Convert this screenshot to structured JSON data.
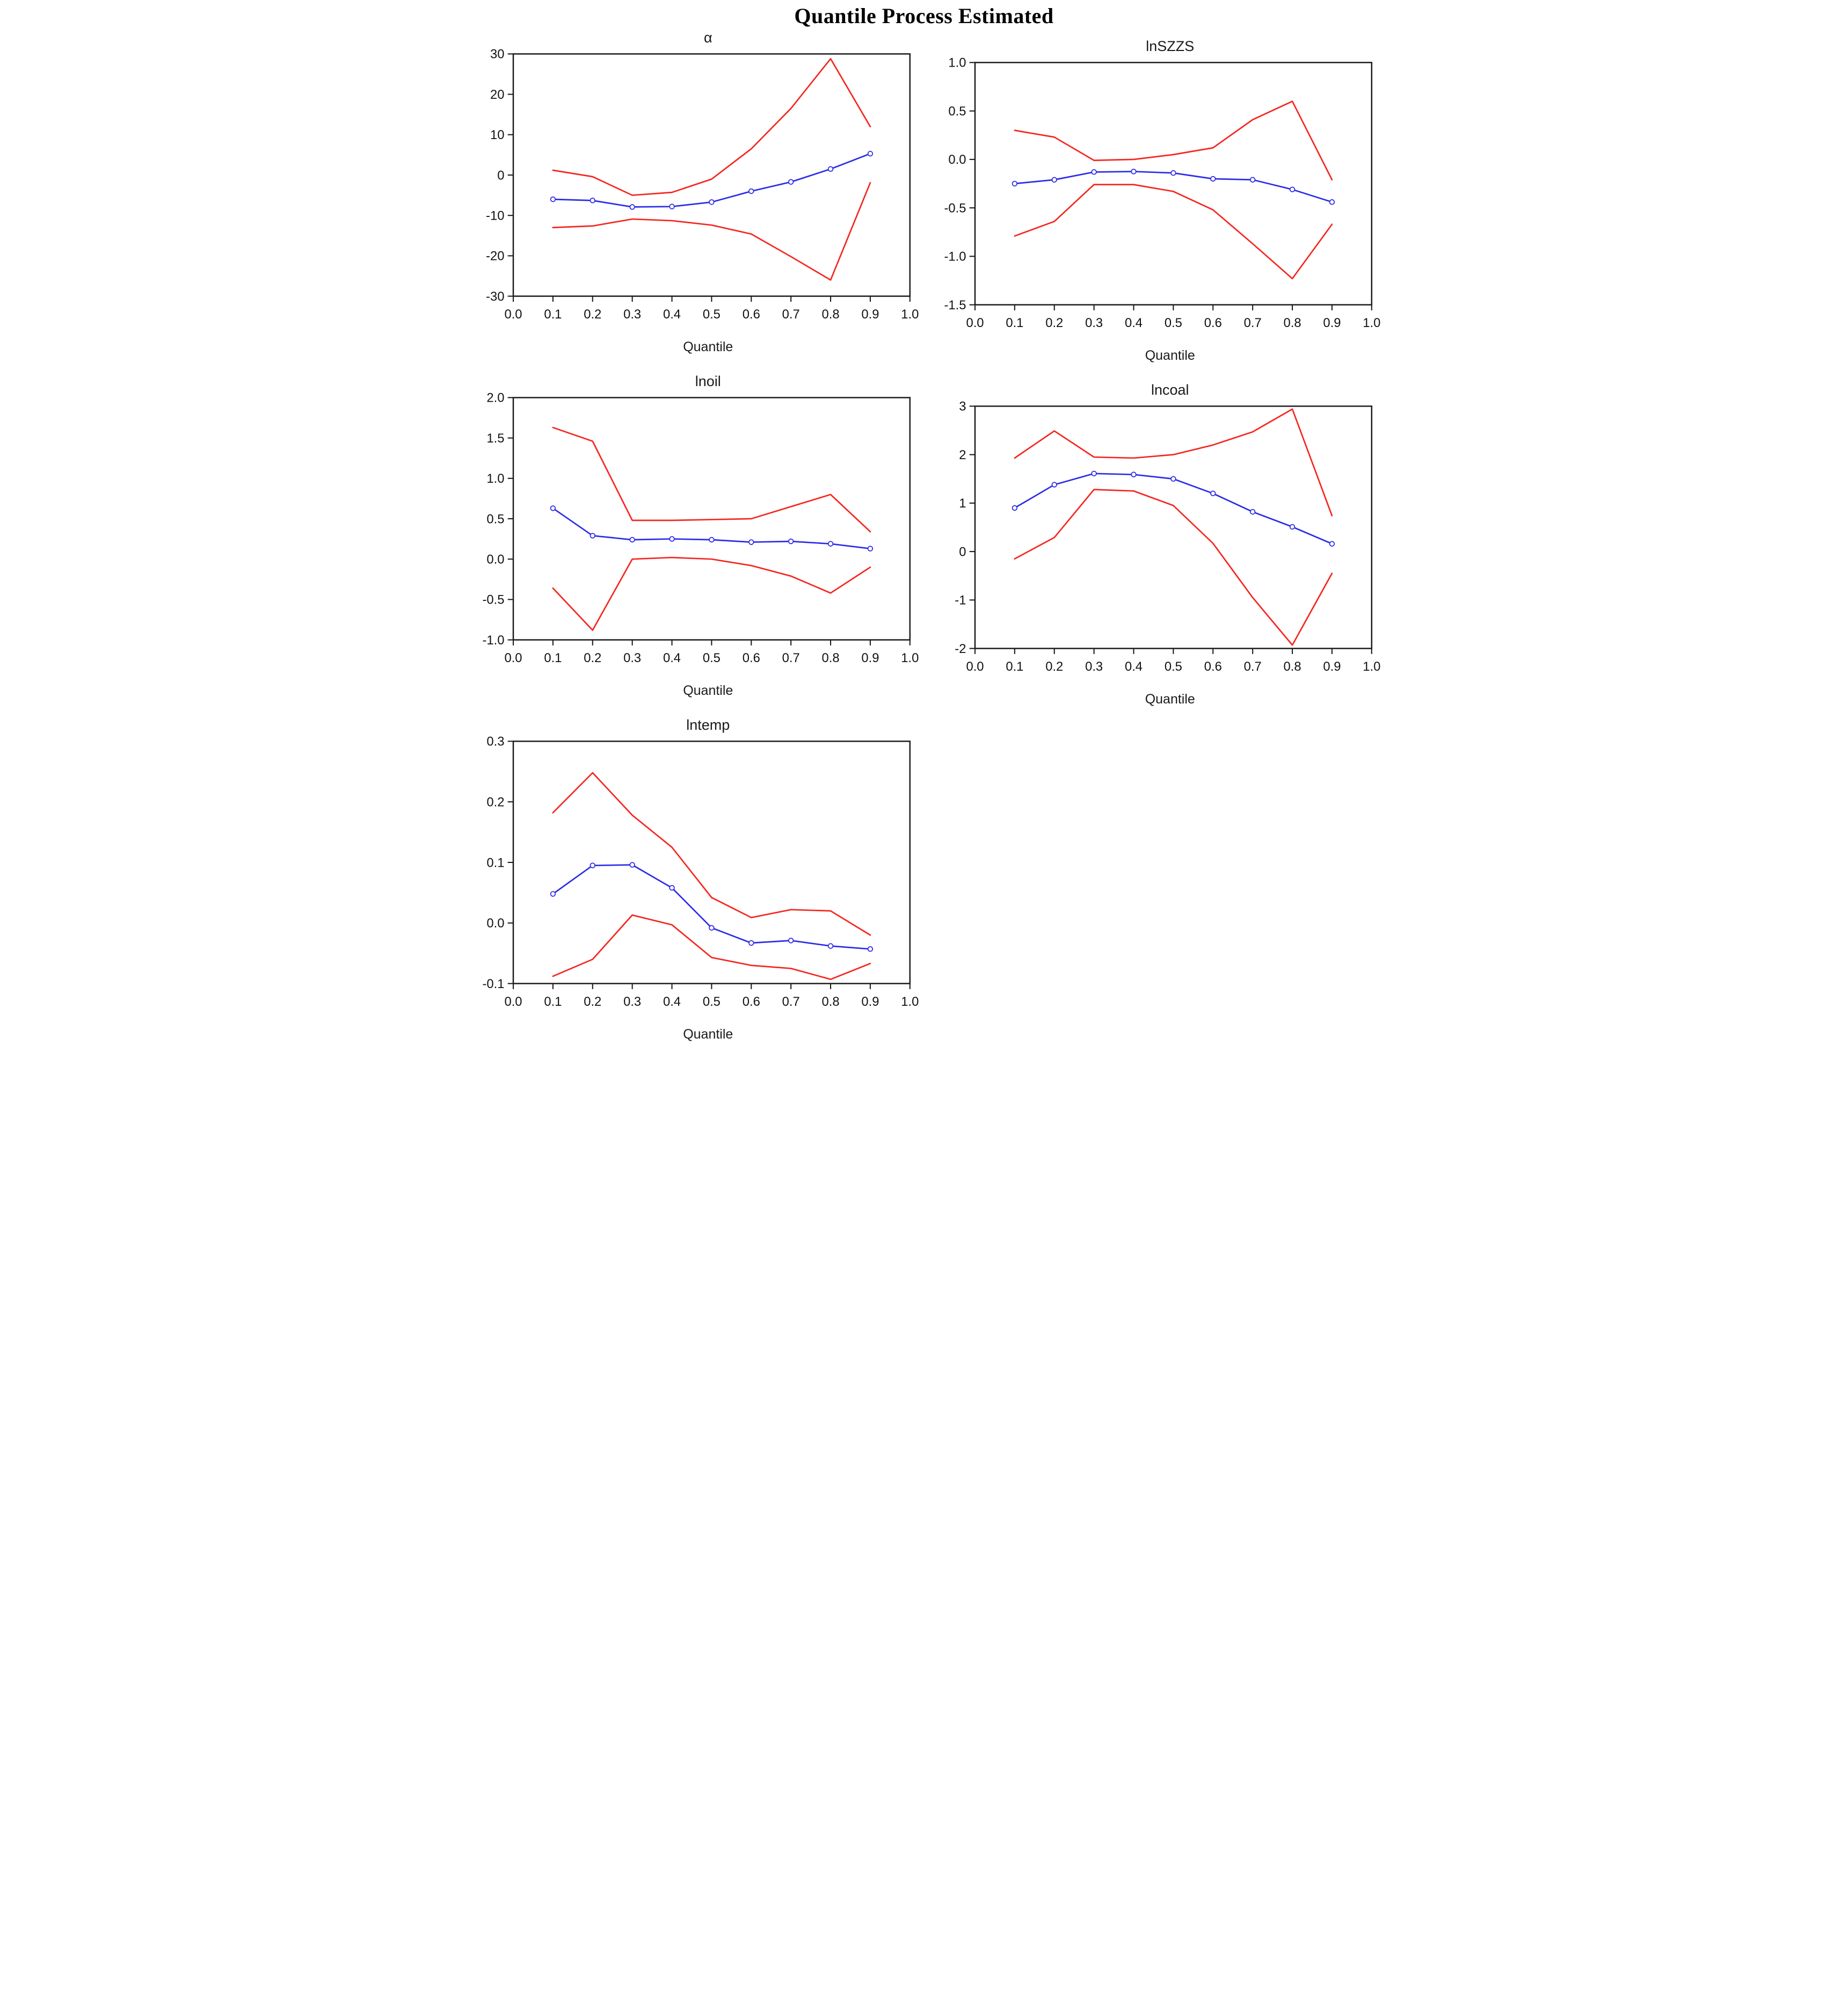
{
  "page": {
    "title": "Quantile Process Estimated"
  },
  "styles": {
    "red": "#f5261f",
    "blue": "#2b2be8",
    "axis_color": "#1a1a1a",
    "background": "#ffffff"
  },
  "chart_data": [
    {
      "type": "line",
      "title": "α",
      "xlabel": "Quantile",
      "x": [
        0.1,
        0.2,
        0.3,
        0.4,
        0.5,
        0.6,
        0.7,
        0.8,
        0.9
      ],
      "xlim": [
        0.0,
        1.0
      ],
      "xtick_labels": [
        "0.0",
        "0.1",
        "0.2",
        "0.3",
        "0.4",
        "0.5",
        "0.6",
        "0.7",
        "0.8",
        "0.9",
        "1.0"
      ],
      "ylim": [
        -30,
        30
      ],
      "ytick_labels": [
        "30",
        "20",
        "10",
        "0",
        "-10",
        "-20",
        "-30"
      ],
      "grid": false,
      "legend": "none",
      "series": [
        {
          "name": "upper-confidence-band",
          "color": "red",
          "markers": false,
          "values": [
            1.2,
            -0.4,
            -5.0,
            -4.3,
            -1.0,
            6.5,
            16.5,
            28.8,
            12.0
          ]
        },
        {
          "name": "quantile-estimate",
          "color": "blue",
          "markers": true,
          "values": [
            -6.0,
            -6.3,
            -7.9,
            -7.8,
            -6.7,
            -4.0,
            -1.7,
            1.5,
            5.3
          ]
        },
        {
          "name": "lower-confidence-band",
          "color": "red",
          "markers": false,
          "values": [
            -13.0,
            -12.6,
            -10.9,
            -11.3,
            -12.4,
            -14.6,
            -20.2,
            -26.0,
            -1.9
          ]
        }
      ]
    },
    {
      "type": "line",
      "title": "lnSZZS",
      "xlabel": "Quantile",
      "x": [
        0.1,
        0.2,
        0.3,
        0.4,
        0.5,
        0.6,
        0.7,
        0.8,
        0.9
      ],
      "xlim": [
        0.0,
        1.0
      ],
      "xtick_labels": [
        "0.0",
        "0.1",
        "0.2",
        "0.3",
        "0.4",
        "0.5",
        "0.6",
        "0.7",
        "0.8",
        "0.9",
        "1.0"
      ],
      "ylim": [
        -1.5,
        1.0
      ],
      "ytick_labels": [
        "1.0",
        "0.5",
        "0.0",
        "-0.5",
        "-1.0",
        "-1.5"
      ],
      "grid": false,
      "legend": "none",
      "series": [
        {
          "name": "upper-confidence-band",
          "color": "red",
          "markers": false,
          "values": [
            0.3,
            0.23,
            -0.01,
            0.0,
            0.05,
            0.12,
            0.41,
            0.6,
            -0.21
          ]
        },
        {
          "name": "quantile-estimate",
          "color": "blue",
          "markers": true,
          "values": [
            -0.25,
            -0.21,
            -0.13,
            -0.125,
            -0.14,
            -0.2,
            -0.21,
            -0.31,
            -0.44
          ]
        },
        {
          "name": "lower-confidence-band",
          "color": "red",
          "markers": false,
          "values": [
            -0.79,
            -0.64,
            -0.26,
            -0.26,
            -0.33,
            -0.52,
            -0.87,
            -1.23,
            -0.67
          ]
        }
      ]
    },
    {
      "type": "line",
      "title": "lnoil",
      "xlabel": "Quantile",
      "x": [
        0.1,
        0.2,
        0.3,
        0.4,
        0.5,
        0.6,
        0.7,
        0.8,
        0.9
      ],
      "xlim": [
        0.0,
        1.0
      ],
      "xtick_labels": [
        "0.0",
        "0.1",
        "0.2",
        "0.3",
        "0.4",
        "0.5",
        "0.6",
        "0.7",
        "0.8",
        "0.9",
        "1.0"
      ],
      "ylim": [
        -1.0,
        2.0
      ],
      "ytick_labels": [
        "2.0",
        "1.5",
        "1.0",
        "0.5",
        "0.0",
        "-0.5",
        "-1.0"
      ],
      "grid": false,
      "legend": "none",
      "series": [
        {
          "name": "upper-confidence-band",
          "color": "red",
          "markers": false,
          "values": [
            1.63,
            1.46,
            0.48,
            0.48,
            0.49,
            0.5,
            0.65,
            0.8,
            0.34
          ]
        },
        {
          "name": "quantile-estimate",
          "color": "blue",
          "markers": true,
          "values": [
            0.63,
            0.29,
            0.24,
            0.25,
            0.24,
            0.21,
            0.22,
            0.19,
            0.13
          ]
        },
        {
          "name": "lower-confidence-band",
          "color": "red",
          "markers": false,
          "values": [
            -0.36,
            -0.88,
            0.0,
            0.02,
            0.0,
            -0.08,
            -0.21,
            -0.42,
            -0.1
          ]
        }
      ]
    },
    {
      "type": "line",
      "title": "lncoal",
      "xlabel": "Quantile",
      "x": [
        0.1,
        0.2,
        0.3,
        0.4,
        0.5,
        0.6,
        0.7,
        0.8,
        0.9
      ],
      "xlim": [
        0.0,
        1.0
      ],
      "xtick_labels": [
        "0.0",
        "0.1",
        "0.2",
        "0.3",
        "0.4",
        "0.5",
        "0.6",
        "0.7",
        "0.8",
        "0.9",
        "1.0"
      ],
      "ylim": [
        -2,
        3
      ],
      "ytick_labels": [
        "3",
        "2",
        "1",
        "0",
        "-1",
        "-2"
      ],
      "grid": false,
      "legend": "none",
      "series": [
        {
          "name": "upper-confidence-band",
          "color": "red",
          "markers": false,
          "values": [
            1.93,
            2.49,
            1.95,
            1.93,
            2.0,
            2.2,
            2.47,
            2.94,
            0.74
          ]
        },
        {
          "name": "quantile-estimate",
          "color": "blue",
          "markers": true,
          "values": [
            0.9,
            1.38,
            1.61,
            1.59,
            1.5,
            1.2,
            0.82,
            0.51,
            0.16
          ]
        },
        {
          "name": "lower-confidence-band",
          "color": "red",
          "markers": false,
          "values": [
            -0.15,
            0.29,
            1.28,
            1.25,
            0.95,
            0.17,
            -0.95,
            -1.93,
            -0.45
          ]
        }
      ]
    },
    {
      "type": "line",
      "title": "lntemp",
      "xlabel": "Quantile",
      "x": [
        0.1,
        0.2,
        0.3,
        0.4,
        0.5,
        0.6,
        0.7,
        0.8,
        0.9
      ],
      "xlim": [
        0.0,
        1.0
      ],
      "xtick_labels": [
        "0.0",
        "0.1",
        "0.2",
        "0.3",
        "0.4",
        "0.5",
        "0.6",
        "0.7",
        "0.8",
        "0.9",
        "1.0"
      ],
      "ylim": [
        -0.1,
        0.3
      ],
      "ytick_labels": [
        "0.3",
        "0.2",
        "0.1",
        "0.0",
        "-0.1"
      ],
      "grid": false,
      "legend": "none",
      "series": [
        {
          "name": "upper-confidence-band",
          "color": "red",
          "markers": false,
          "values": [
            0.182,
            0.248,
            0.178,
            0.125,
            0.042,
            0.009,
            0.022,
            0.02,
            -0.02
          ]
        },
        {
          "name": "quantile-estimate",
          "color": "blue",
          "markers": true,
          "values": [
            0.048,
            0.095,
            0.096,
            0.058,
            -0.008,
            -0.033,
            -0.029,
            -0.038,
            -0.043
          ]
        },
        {
          "name": "lower-confidence-band",
          "color": "red",
          "markers": false,
          "values": [
            -0.088,
            -0.06,
            0.013,
            -0.003,
            -0.057,
            -0.07,
            -0.075,
            -0.093,
            -0.067
          ]
        }
      ]
    }
  ]
}
